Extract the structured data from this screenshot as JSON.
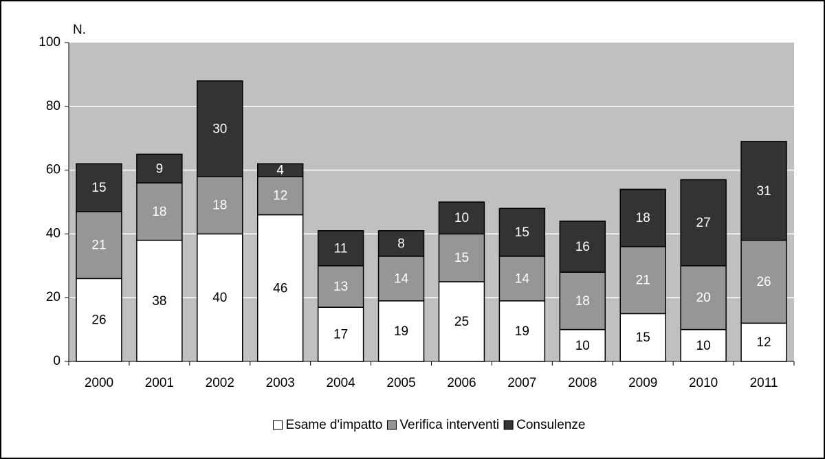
{
  "chart_data": {
    "type": "stacked_bar",
    "y_label": "N.",
    "categories": [
      "2000",
      "2001",
      "2002",
      "2003",
      "2004",
      "2005",
      "2006",
      "2007",
      "2008",
      "2009",
      "2010",
      "2011"
    ],
    "series": [
      {
        "name": "Esame d'impatto",
        "color": "#ffffff",
        "label_color": "#000000",
        "values": [
          26,
          38,
          40,
          46,
          17,
          19,
          25,
          19,
          10,
          15,
          10,
          12
        ]
      },
      {
        "name": "Verifica interventi",
        "color": "#969696",
        "label_color": "#ffffff",
        "values": [
          21,
          18,
          18,
          12,
          13,
          14,
          15,
          14,
          18,
          21,
          20,
          26
        ]
      },
      {
        "name": "Consulenze",
        "color": "#333333",
        "label_color": "#ffffff",
        "values": [
          15,
          9,
          30,
          4,
          11,
          8,
          10,
          15,
          16,
          18,
          27,
          31
        ]
      }
    ],
    "ylim": [
      0,
      100
    ],
    "yticks": [
      0,
      20,
      40,
      60,
      80,
      100
    ],
    "grid": true,
    "plot_background": "#c0c0c0",
    "legend": "bottom"
  }
}
